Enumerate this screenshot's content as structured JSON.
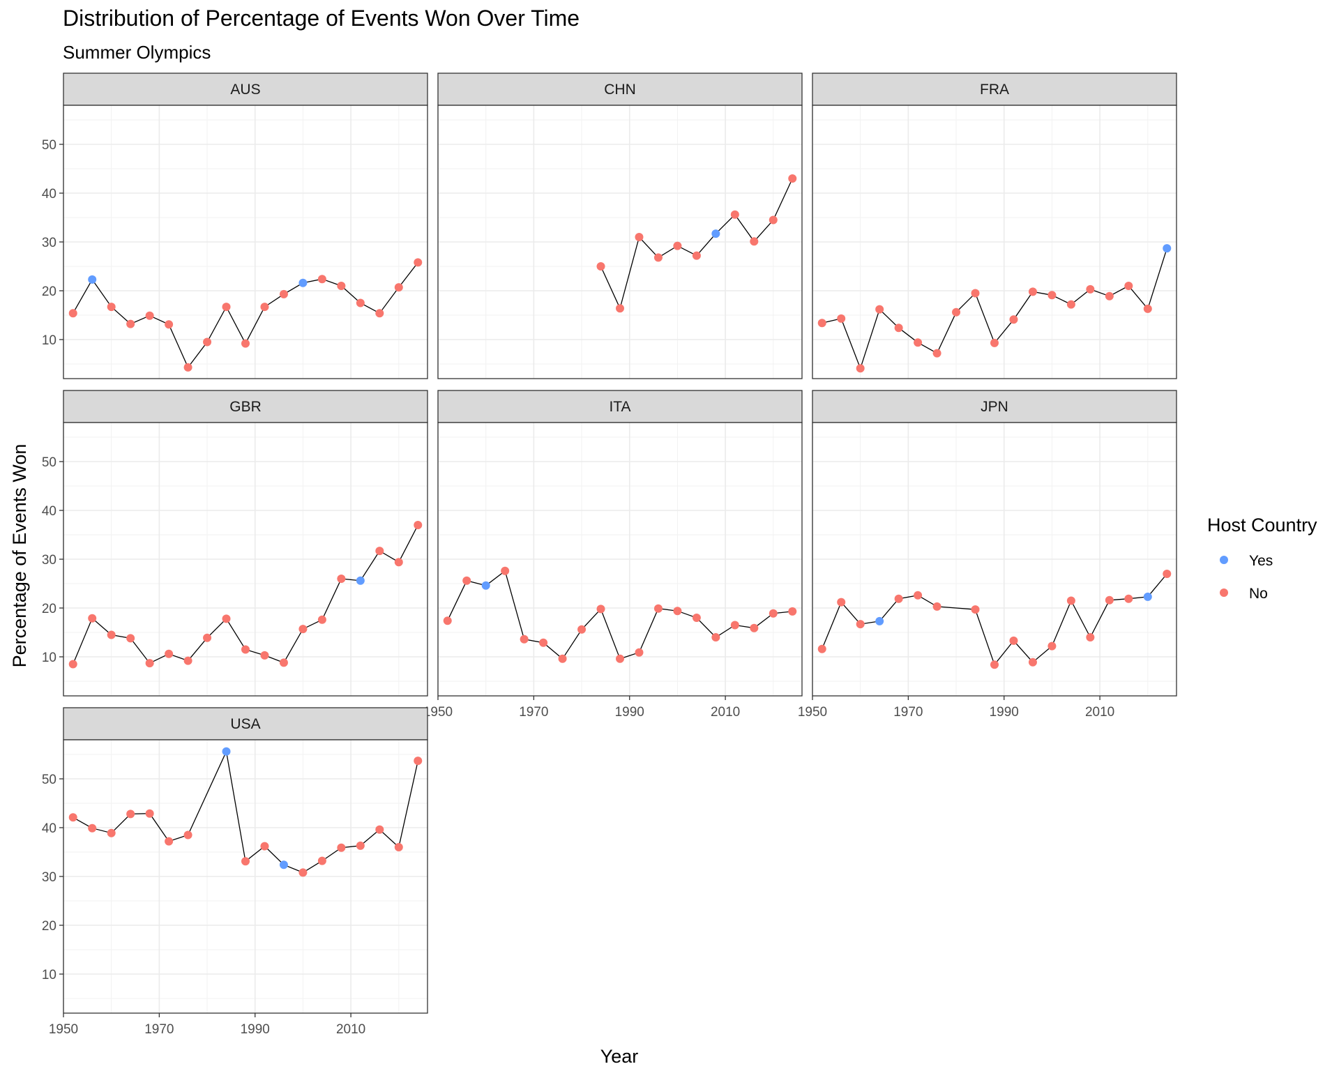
{
  "chart_data": {
    "type": "line",
    "title": "Distribution of Percentage of Events Won Over Time",
    "subtitle": "Summer Olympics",
    "xlabel": "Year",
    "ylabel": "Percentage of Events Won",
    "xlim": [
      1950,
      2026
    ],
    "ylim": [
      2,
      58
    ],
    "x_ticks": [
      1950,
      1970,
      1990,
      2010
    ],
    "y_ticks": [
      10,
      20,
      30,
      40,
      50
    ],
    "grid": true,
    "legend": {
      "title": "Host Country",
      "position": "right",
      "entries": [
        {
          "label": "Yes",
          "color": "#619CFF"
        },
        {
          "label": "No",
          "color": "#F8766D"
        }
      ]
    },
    "line_color": "#000000",
    "panels": [
      {
        "name": "AUS",
        "points": [
          {
            "x": 1952,
            "y": 15.4,
            "host": "No"
          },
          {
            "x": 1956,
            "y": 22.3,
            "host": "Yes"
          },
          {
            "x": 1960,
            "y": 16.7,
            "host": "No"
          },
          {
            "x": 1964,
            "y": 13.2,
            "host": "No"
          },
          {
            "x": 1968,
            "y": 14.9,
            "host": "No"
          },
          {
            "x": 1972,
            "y": 13.1,
            "host": "No"
          },
          {
            "x": 1976,
            "y": 4.3,
            "host": "No"
          },
          {
            "x": 1980,
            "y": 9.5,
            "host": "No"
          },
          {
            "x": 1984,
            "y": 16.7,
            "host": "No"
          },
          {
            "x": 1988,
            "y": 9.2,
            "host": "No"
          },
          {
            "x": 1992,
            "y": 16.7,
            "host": "No"
          },
          {
            "x": 1996,
            "y": 19.3,
            "host": "No"
          },
          {
            "x": 2000,
            "y": 21.6,
            "host": "Yes"
          },
          {
            "x": 2004,
            "y": 22.4,
            "host": "No"
          },
          {
            "x": 2008,
            "y": 21.0,
            "host": "No"
          },
          {
            "x": 2012,
            "y": 17.5,
            "host": "No"
          },
          {
            "x": 2016,
            "y": 15.4,
            "host": "No"
          },
          {
            "x": 2020,
            "y": 20.7,
            "host": "No"
          },
          {
            "x": 2024,
            "y": 25.8,
            "host": "No"
          }
        ]
      },
      {
        "name": "CHN",
        "points": [
          {
            "x": 1984,
            "y": 25.0,
            "host": "No"
          },
          {
            "x": 1988,
            "y": 16.4,
            "host": "No"
          },
          {
            "x": 1992,
            "y": 31.0,
            "host": "No"
          },
          {
            "x": 1996,
            "y": 26.8,
            "host": "No"
          },
          {
            "x": 2000,
            "y": 29.2,
            "host": "No"
          },
          {
            "x": 2004,
            "y": 27.2,
            "host": "No"
          },
          {
            "x": 2008,
            "y": 31.7,
            "host": "Yes"
          },
          {
            "x": 2012,
            "y": 35.6,
            "host": "No"
          },
          {
            "x": 2016,
            "y": 30.1,
            "host": "No"
          },
          {
            "x": 2020,
            "y": 34.5,
            "host": "No"
          },
          {
            "x": 2024,
            "y": 43.0,
            "host": "No"
          }
        ]
      },
      {
        "name": "FRA",
        "points": [
          {
            "x": 1952,
            "y": 13.4,
            "host": "No"
          },
          {
            "x": 1956,
            "y": 14.3,
            "host": "No"
          },
          {
            "x": 1960,
            "y": 4.1,
            "host": "No"
          },
          {
            "x": 1964,
            "y": 16.2,
            "host": "No"
          },
          {
            "x": 1968,
            "y": 12.4,
            "host": "No"
          },
          {
            "x": 1972,
            "y": 9.4,
            "host": "No"
          },
          {
            "x": 1976,
            "y": 7.2,
            "host": "No"
          },
          {
            "x": 1980,
            "y": 15.6,
            "host": "No"
          },
          {
            "x": 1984,
            "y": 19.5,
            "host": "No"
          },
          {
            "x": 1988,
            "y": 9.3,
            "host": "No"
          },
          {
            "x": 1992,
            "y": 14.1,
            "host": "No"
          },
          {
            "x": 1996,
            "y": 19.8,
            "host": "No"
          },
          {
            "x": 2000,
            "y": 19.1,
            "host": "No"
          },
          {
            "x": 2004,
            "y": 17.2,
            "host": "No"
          },
          {
            "x": 2008,
            "y": 20.3,
            "host": "No"
          },
          {
            "x": 2012,
            "y": 18.9,
            "host": "No"
          },
          {
            "x": 2016,
            "y": 21.0,
            "host": "No"
          },
          {
            "x": 2020,
            "y": 16.3,
            "host": "No"
          },
          {
            "x": 2024,
            "y": 28.7,
            "host": "Yes"
          }
        ]
      },
      {
        "name": "GBR",
        "points": [
          {
            "x": 1952,
            "y": 8.5,
            "host": "No"
          },
          {
            "x": 1956,
            "y": 17.9,
            "host": "No"
          },
          {
            "x": 1960,
            "y": 14.5,
            "host": "No"
          },
          {
            "x": 1964,
            "y": 13.8,
            "host": "No"
          },
          {
            "x": 1968,
            "y": 8.7,
            "host": "No"
          },
          {
            "x": 1972,
            "y": 10.6,
            "host": "No"
          },
          {
            "x": 1976,
            "y": 9.2,
            "host": "No"
          },
          {
            "x": 1980,
            "y": 13.9,
            "host": "No"
          },
          {
            "x": 1984,
            "y": 17.8,
            "host": "No"
          },
          {
            "x": 1988,
            "y": 11.5,
            "host": "No"
          },
          {
            "x": 1992,
            "y": 10.3,
            "host": "No"
          },
          {
            "x": 1996,
            "y": 8.8,
            "host": "No"
          },
          {
            "x": 2000,
            "y": 15.7,
            "host": "No"
          },
          {
            "x": 2004,
            "y": 17.6,
            "host": "No"
          },
          {
            "x": 2008,
            "y": 26.0,
            "host": "No"
          },
          {
            "x": 2012,
            "y": 25.6,
            "host": "Yes"
          },
          {
            "x": 2016,
            "y": 31.7,
            "host": "No"
          },
          {
            "x": 2020,
            "y": 29.4,
            "host": "No"
          },
          {
            "x": 2024,
            "y": 37.0,
            "host": "No"
          }
        ]
      },
      {
        "name": "ITA",
        "points": [
          {
            "x": 1952,
            "y": 17.4,
            "host": "No"
          },
          {
            "x": 1956,
            "y": 25.6,
            "host": "No"
          },
          {
            "x": 1960,
            "y": 24.6,
            "host": "Yes"
          },
          {
            "x": 1964,
            "y": 27.6,
            "host": "No"
          },
          {
            "x": 1968,
            "y": 13.6,
            "host": "No"
          },
          {
            "x": 1972,
            "y": 12.9,
            "host": "No"
          },
          {
            "x": 1976,
            "y": 9.6,
            "host": "No"
          },
          {
            "x": 1980,
            "y": 15.6,
            "host": "No"
          },
          {
            "x": 1984,
            "y": 19.8,
            "host": "No"
          },
          {
            "x": 1988,
            "y": 9.6,
            "host": "No"
          },
          {
            "x": 1992,
            "y": 10.9,
            "host": "No"
          },
          {
            "x": 1996,
            "y": 19.9,
            "host": "No"
          },
          {
            "x": 2000,
            "y": 19.4,
            "host": "No"
          },
          {
            "x": 2004,
            "y": 18.0,
            "host": "No"
          },
          {
            "x": 2008,
            "y": 14.0,
            "host": "No"
          },
          {
            "x": 2012,
            "y": 16.5,
            "host": "No"
          },
          {
            "x": 2016,
            "y": 15.9,
            "host": "No"
          },
          {
            "x": 2020,
            "y": 18.9,
            "host": "No"
          },
          {
            "x": 2024,
            "y": 19.3,
            "host": "No"
          }
        ]
      },
      {
        "name": "JPN",
        "points": [
          {
            "x": 1952,
            "y": 11.6,
            "host": "No"
          },
          {
            "x": 1956,
            "y": 21.2,
            "host": "No"
          },
          {
            "x": 1960,
            "y": 16.7,
            "host": "No"
          },
          {
            "x": 1964,
            "y": 17.3,
            "host": "Yes"
          },
          {
            "x": 1968,
            "y": 21.9,
            "host": "No"
          },
          {
            "x": 1972,
            "y": 22.6,
            "host": "No"
          },
          {
            "x": 1976,
            "y": 20.3,
            "host": "No"
          },
          {
            "x": 1984,
            "y": 19.7,
            "host": "No"
          },
          {
            "x": 1988,
            "y": 8.4,
            "host": "No"
          },
          {
            "x": 1992,
            "y": 13.3,
            "host": "No"
          },
          {
            "x": 1996,
            "y": 8.9,
            "host": "No"
          },
          {
            "x": 2000,
            "y": 12.2,
            "host": "No"
          },
          {
            "x": 2004,
            "y": 21.5,
            "host": "No"
          },
          {
            "x": 2008,
            "y": 14.0,
            "host": "No"
          },
          {
            "x": 2012,
            "y": 21.6,
            "host": "No"
          },
          {
            "x": 2016,
            "y": 21.9,
            "host": "No"
          },
          {
            "x": 2020,
            "y": 22.3,
            "host": "Yes"
          },
          {
            "x": 2024,
            "y": 27.0,
            "host": "No"
          }
        ]
      },
      {
        "name": "USA",
        "points": [
          {
            "x": 1952,
            "y": 42.1,
            "host": "No"
          },
          {
            "x": 1956,
            "y": 39.9,
            "host": "No"
          },
          {
            "x": 1960,
            "y": 38.9,
            "host": "No"
          },
          {
            "x": 1964,
            "y": 42.8,
            "host": "No"
          },
          {
            "x": 1968,
            "y": 42.9,
            "host": "No"
          },
          {
            "x": 1972,
            "y": 37.2,
            "host": "No"
          },
          {
            "x": 1976,
            "y": 38.5,
            "host": "No"
          },
          {
            "x": 1984,
            "y": 55.6,
            "host": "Yes"
          },
          {
            "x": 1988,
            "y": 33.1,
            "host": "No"
          },
          {
            "x": 1992,
            "y": 36.2,
            "host": "No"
          },
          {
            "x": 1996,
            "y": 32.4,
            "host": "Yes"
          },
          {
            "x": 2000,
            "y": 30.8,
            "host": "No"
          },
          {
            "x": 2004,
            "y": 33.2,
            "host": "No"
          },
          {
            "x": 2008,
            "y": 35.9,
            "host": "No"
          },
          {
            "x": 2012,
            "y": 36.3,
            "host": "No"
          },
          {
            "x": 2016,
            "y": 39.6,
            "host": "No"
          },
          {
            "x": 2020,
            "y": 36.0,
            "host": "No"
          },
          {
            "x": 2024,
            "y": 53.7,
            "host": "No"
          }
        ]
      }
    ]
  }
}
